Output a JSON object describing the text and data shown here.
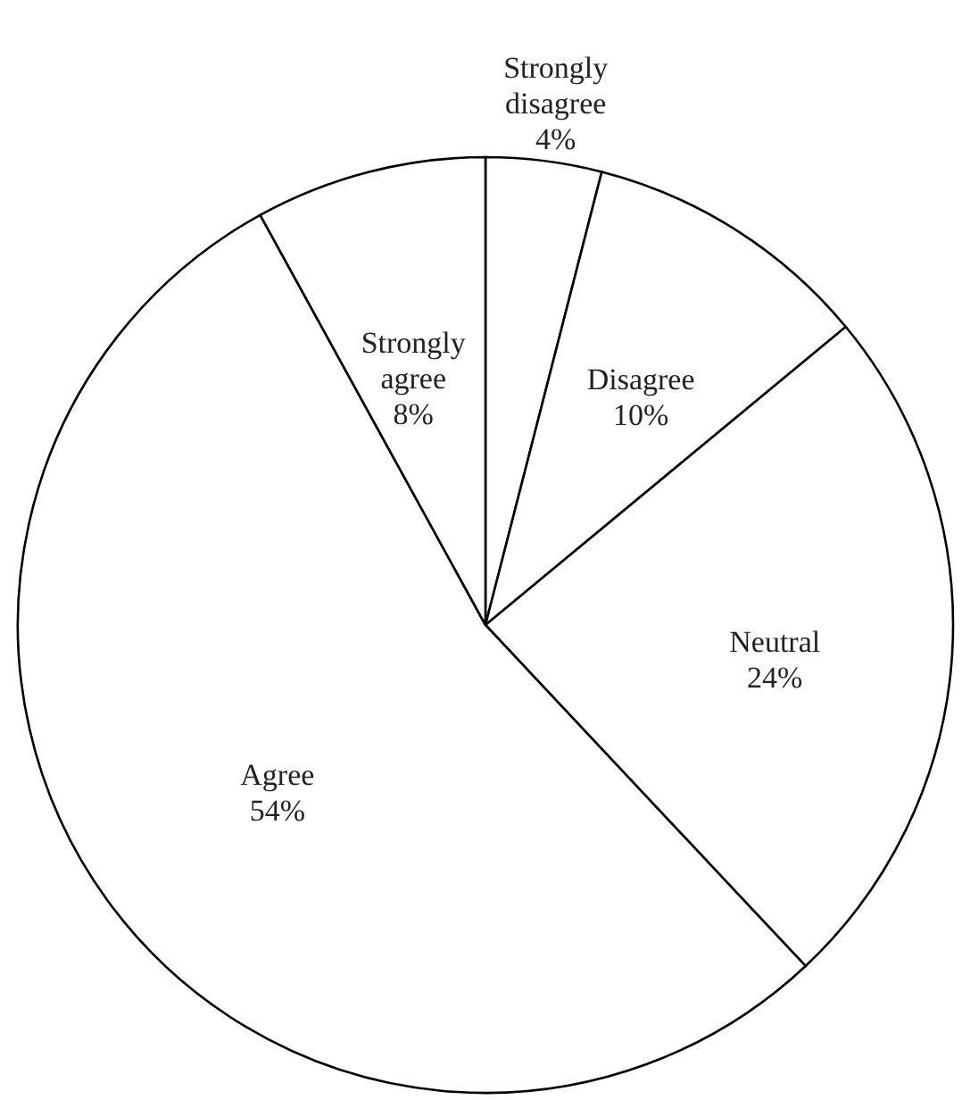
{
  "chart_data": {
    "type": "pie",
    "categories": [
      "Strongly disagree",
      "Disagree",
      "Neutral",
      "Agree",
      "Strongly agree"
    ],
    "values": [
      4,
      10,
      24,
      54,
      8
    ],
    "colors": [
      "#ffffff",
      "#ffffff",
      "#ffffff",
      "#ffffff",
      "#ffffff"
    ],
    "value_labels": [
      "4%",
      "10%",
      "24%",
      "54%",
      "8%"
    ]
  }
}
